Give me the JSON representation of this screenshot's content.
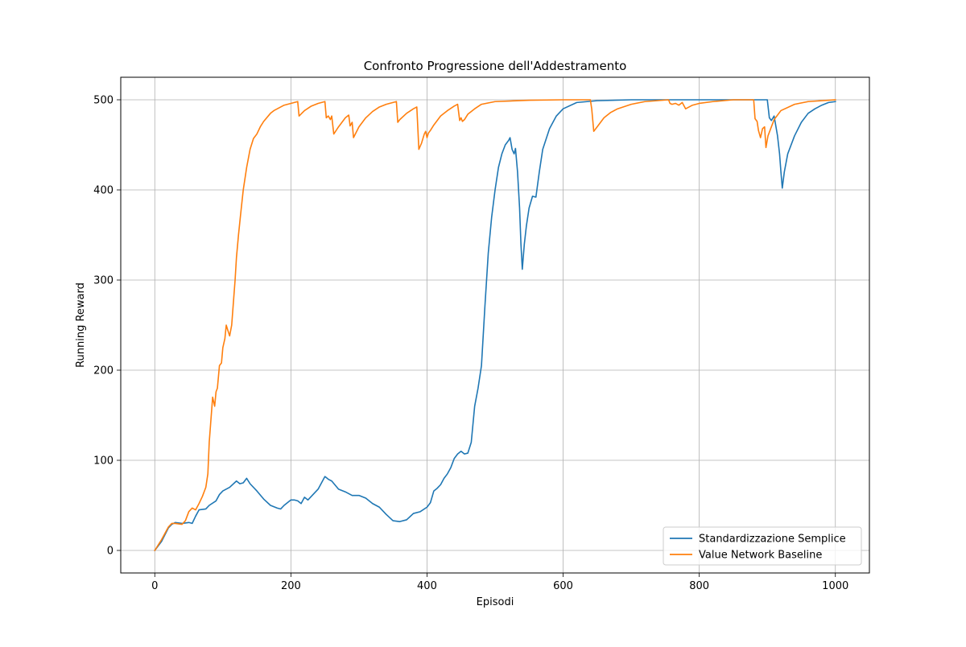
{
  "chart_data": {
    "type": "line",
    "title": "Confronto Progressione dell'Addestramento",
    "xlabel": "Episodi",
    "ylabel": "Running Reward",
    "xlim": [
      -50,
      1050
    ],
    "ylim": [
      -25,
      525
    ],
    "xticks": [
      0,
      200,
      400,
      600,
      800,
      1000
    ],
    "yticks": [
      0,
      100,
      200,
      300,
      400,
      500
    ],
    "xtick_labels": [
      "0",
      "200",
      "400",
      "600",
      "800",
      "1000"
    ],
    "ytick_labels": [
      "0",
      "100",
      "200",
      "300",
      "400",
      "500"
    ],
    "grid": true,
    "legend_position": "lower-right",
    "series": [
      {
        "name": "Standardizzazione Semplice",
        "color": "#1f77b4",
        "points": [
          [
            0,
            0
          ],
          [
            10,
            10
          ],
          [
            20,
            25
          ],
          [
            25,
            29
          ],
          [
            30,
            31
          ],
          [
            40,
            30
          ],
          [
            50,
            31
          ],
          [
            55,
            30
          ],
          [
            60,
            38
          ],
          [
            65,
            45
          ],
          [
            75,
            46
          ],
          [
            80,
            50
          ],
          [
            90,
            55
          ],
          [
            95,
            62
          ],
          [
            100,
            66
          ],
          [
            110,
            70
          ],
          [
            120,
            77
          ],
          [
            125,
            74
          ],
          [
            130,
            75
          ],
          [
            135,
            80
          ],
          [
            140,
            74
          ],
          [
            150,
            66
          ],
          [
            160,
            57
          ],
          [
            170,
            50
          ],
          [
            180,
            47
          ],
          [
            185,
            46
          ],
          [
            190,
            50
          ],
          [
            200,
            56
          ],
          [
            205,
            56
          ],
          [
            210,
            55
          ],
          [
            215,
            52
          ],
          [
            220,
            59
          ],
          [
            225,
            56
          ],
          [
            230,
            60
          ],
          [
            240,
            68
          ],
          [
            245,
            75
          ],
          [
            250,
            82
          ],
          [
            255,
            79
          ],
          [
            260,
            77
          ],
          [
            270,
            68
          ],
          [
            280,
            65
          ],
          [
            290,
            61
          ],
          [
            300,
            61
          ],
          [
            310,
            58
          ],
          [
            320,
            52
          ],
          [
            330,
            48
          ],
          [
            340,
            40
          ],
          [
            350,
            33
          ],
          [
            360,
            32
          ],
          [
            370,
            34
          ],
          [
            380,
            41
          ],
          [
            390,
            43
          ],
          [
            400,
            48
          ],
          [
            405,
            53
          ],
          [
            410,
            66
          ],
          [
            415,
            69
          ],
          [
            420,
            73
          ],
          [
            425,
            80
          ],
          [
            430,
            85
          ],
          [
            435,
            92
          ],
          [
            440,
            102
          ],
          [
            445,
            107
          ],
          [
            450,
            110
          ],
          [
            455,
            107
          ],
          [
            460,
            108
          ],
          [
            465,
            120
          ],
          [
            470,
            160
          ],
          [
            475,
            180
          ],
          [
            480,
            205
          ],
          [
            485,
            270
          ],
          [
            490,
            330
          ],
          [
            495,
            370
          ],
          [
            500,
            400
          ],
          [
            505,
            425
          ],
          [
            510,
            440
          ],
          [
            515,
            450
          ],
          [
            520,
            455
          ],
          [
            522,
            458
          ],
          [
            525,
            445
          ],
          [
            528,
            440
          ],
          [
            530,
            446
          ],
          [
            533,
            420
          ],
          [
            536,
            380
          ],
          [
            538,
            340
          ],
          [
            540,
            312
          ],
          [
            543,
            340
          ],
          [
            546,
            360
          ],
          [
            550,
            380
          ],
          [
            555,
            393
          ],
          [
            560,
            392
          ],
          [
            565,
            420
          ],
          [
            570,
            445
          ],
          [
            580,
            468
          ],
          [
            590,
            482
          ],
          [
            600,
            490
          ],
          [
            620,
            497
          ],
          [
            650,
            499
          ],
          [
            700,
            500
          ],
          [
            900,
            500
          ],
          [
            903,
            480
          ],
          [
            906,
            477
          ],
          [
            910,
            482
          ],
          [
            915,
            460
          ],
          [
            918,
            440
          ],
          [
            920,
            420
          ],
          [
            922,
            402
          ],
          [
            925,
            420
          ],
          [
            930,
            440
          ],
          [
            940,
            460
          ],
          [
            950,
            475
          ],
          [
            960,
            485
          ],
          [
            970,
            490
          ],
          [
            980,
            494
          ],
          [
            990,
            497
          ],
          [
            1000,
            498
          ]
        ]
      },
      {
        "name": "Value Network Baseline",
        "color": "#ff7f0e",
        "points": [
          [
            0,
            0
          ],
          [
            10,
            12
          ],
          [
            20,
            26
          ],
          [
            25,
            30
          ],
          [
            30,
            30
          ],
          [
            40,
            29
          ],
          [
            45,
            33
          ],
          [
            50,
            43
          ],
          [
            55,
            47
          ],
          [
            60,
            45
          ],
          [
            65,
            52
          ],
          [
            70,
            60
          ],
          [
            75,
            70
          ],
          [
            78,
            85
          ],
          [
            80,
            120
          ],
          [
            82,
            140
          ],
          [
            85,
            170
          ],
          [
            88,
            160
          ],
          [
            90,
            176
          ],
          [
            92,
            180
          ],
          [
            95,
            205
          ],
          [
            98,
            208
          ],
          [
            100,
            225
          ],
          [
            103,
            235
          ],
          [
            105,
            250
          ],
          [
            107,
            245
          ],
          [
            110,
            238
          ],
          [
            113,
            250
          ],
          [
            115,
            270
          ],
          [
            118,
            300
          ],
          [
            120,
            325
          ],
          [
            123,
            350
          ],
          [
            126,
            372
          ],
          [
            130,
            400
          ],
          [
            135,
            425
          ],
          [
            140,
            445
          ],
          [
            145,
            457
          ],
          [
            150,
            462
          ],
          [
            155,
            470
          ],
          [
            160,
            476
          ],
          [
            170,
            485
          ],
          [
            175,
            488
          ],
          [
            180,
            490
          ],
          [
            190,
            494
          ],
          [
            200,
            496
          ],
          [
            210,
            498
          ],
          [
            212,
            482
          ],
          [
            220,
            488
          ],
          [
            230,
            493
          ],
          [
            240,
            496
          ],
          [
            250,
            498
          ],
          [
            252,
            480
          ],
          [
            255,
            482
          ],
          [
            258,
            478
          ],
          [
            260,
            482
          ],
          [
            263,
            462
          ],
          [
            270,
            470
          ],
          [
            280,
            480
          ],
          [
            285,
            483
          ],
          [
            287,
            471
          ],
          [
            290,
            475
          ],
          [
            292,
            458
          ],
          [
            300,
            470
          ],
          [
            310,
            480
          ],
          [
            320,
            487
          ],
          [
            330,
            492
          ],
          [
            340,
            495
          ],
          [
            350,
            497
          ],
          [
            355,
            498
          ],
          [
            357,
            475
          ],
          [
            360,
            478
          ],
          [
            370,
            485
          ],
          [
            380,
            490
          ],
          [
            385,
            492
          ],
          [
            388,
            445
          ],
          [
            392,
            452
          ],
          [
            396,
            462
          ],
          [
            398,
            465
          ],
          [
            400,
            458
          ],
          [
            402,
            463
          ],
          [
            405,
            466
          ],
          [
            410,
            472
          ],
          [
            420,
            482
          ],
          [
            430,
            488
          ],
          [
            440,
            493
          ],
          [
            445,
            495
          ],
          [
            448,
            477
          ],
          [
            450,
            480
          ],
          [
            452,
            476
          ],
          [
            455,
            478
          ],
          [
            460,
            484
          ],
          [
            470,
            490
          ],
          [
            480,
            495
          ],
          [
            500,
            498
          ],
          [
            550,
            499.5
          ],
          [
            600,
            500
          ],
          [
            640,
            500
          ],
          [
            642,
            490
          ],
          [
            645,
            465
          ],
          [
            650,
            470
          ],
          [
            660,
            480
          ],
          [
            670,
            486
          ],
          [
            680,
            490
          ],
          [
            700,
            495
          ],
          [
            720,
            498
          ],
          [
            755,
            500
          ],
          [
            757,
            496
          ],
          [
            760,
            495
          ],
          [
            765,
            496
          ],
          [
            770,
            494
          ],
          [
            775,
            497
          ],
          [
            780,
            490
          ],
          [
            790,
            494
          ],
          [
            800,
            496
          ],
          [
            820,
            498
          ],
          [
            850,
            500
          ],
          [
            880,
            500
          ],
          [
            882,
            479
          ],
          [
            885,
            476
          ],
          [
            887,
            466
          ],
          [
            890,
            458
          ],
          [
            893,
            468
          ],
          [
            896,
            470
          ],
          [
            898,
            447
          ],
          [
            901,
            460
          ],
          [
            905,
            468
          ],
          [
            910,
            478
          ],
          [
            920,
            488
          ],
          [
            940,
            495
          ],
          [
            960,
            498
          ],
          [
            980,
            499
          ],
          [
            1000,
            500
          ]
        ]
      }
    ]
  }
}
